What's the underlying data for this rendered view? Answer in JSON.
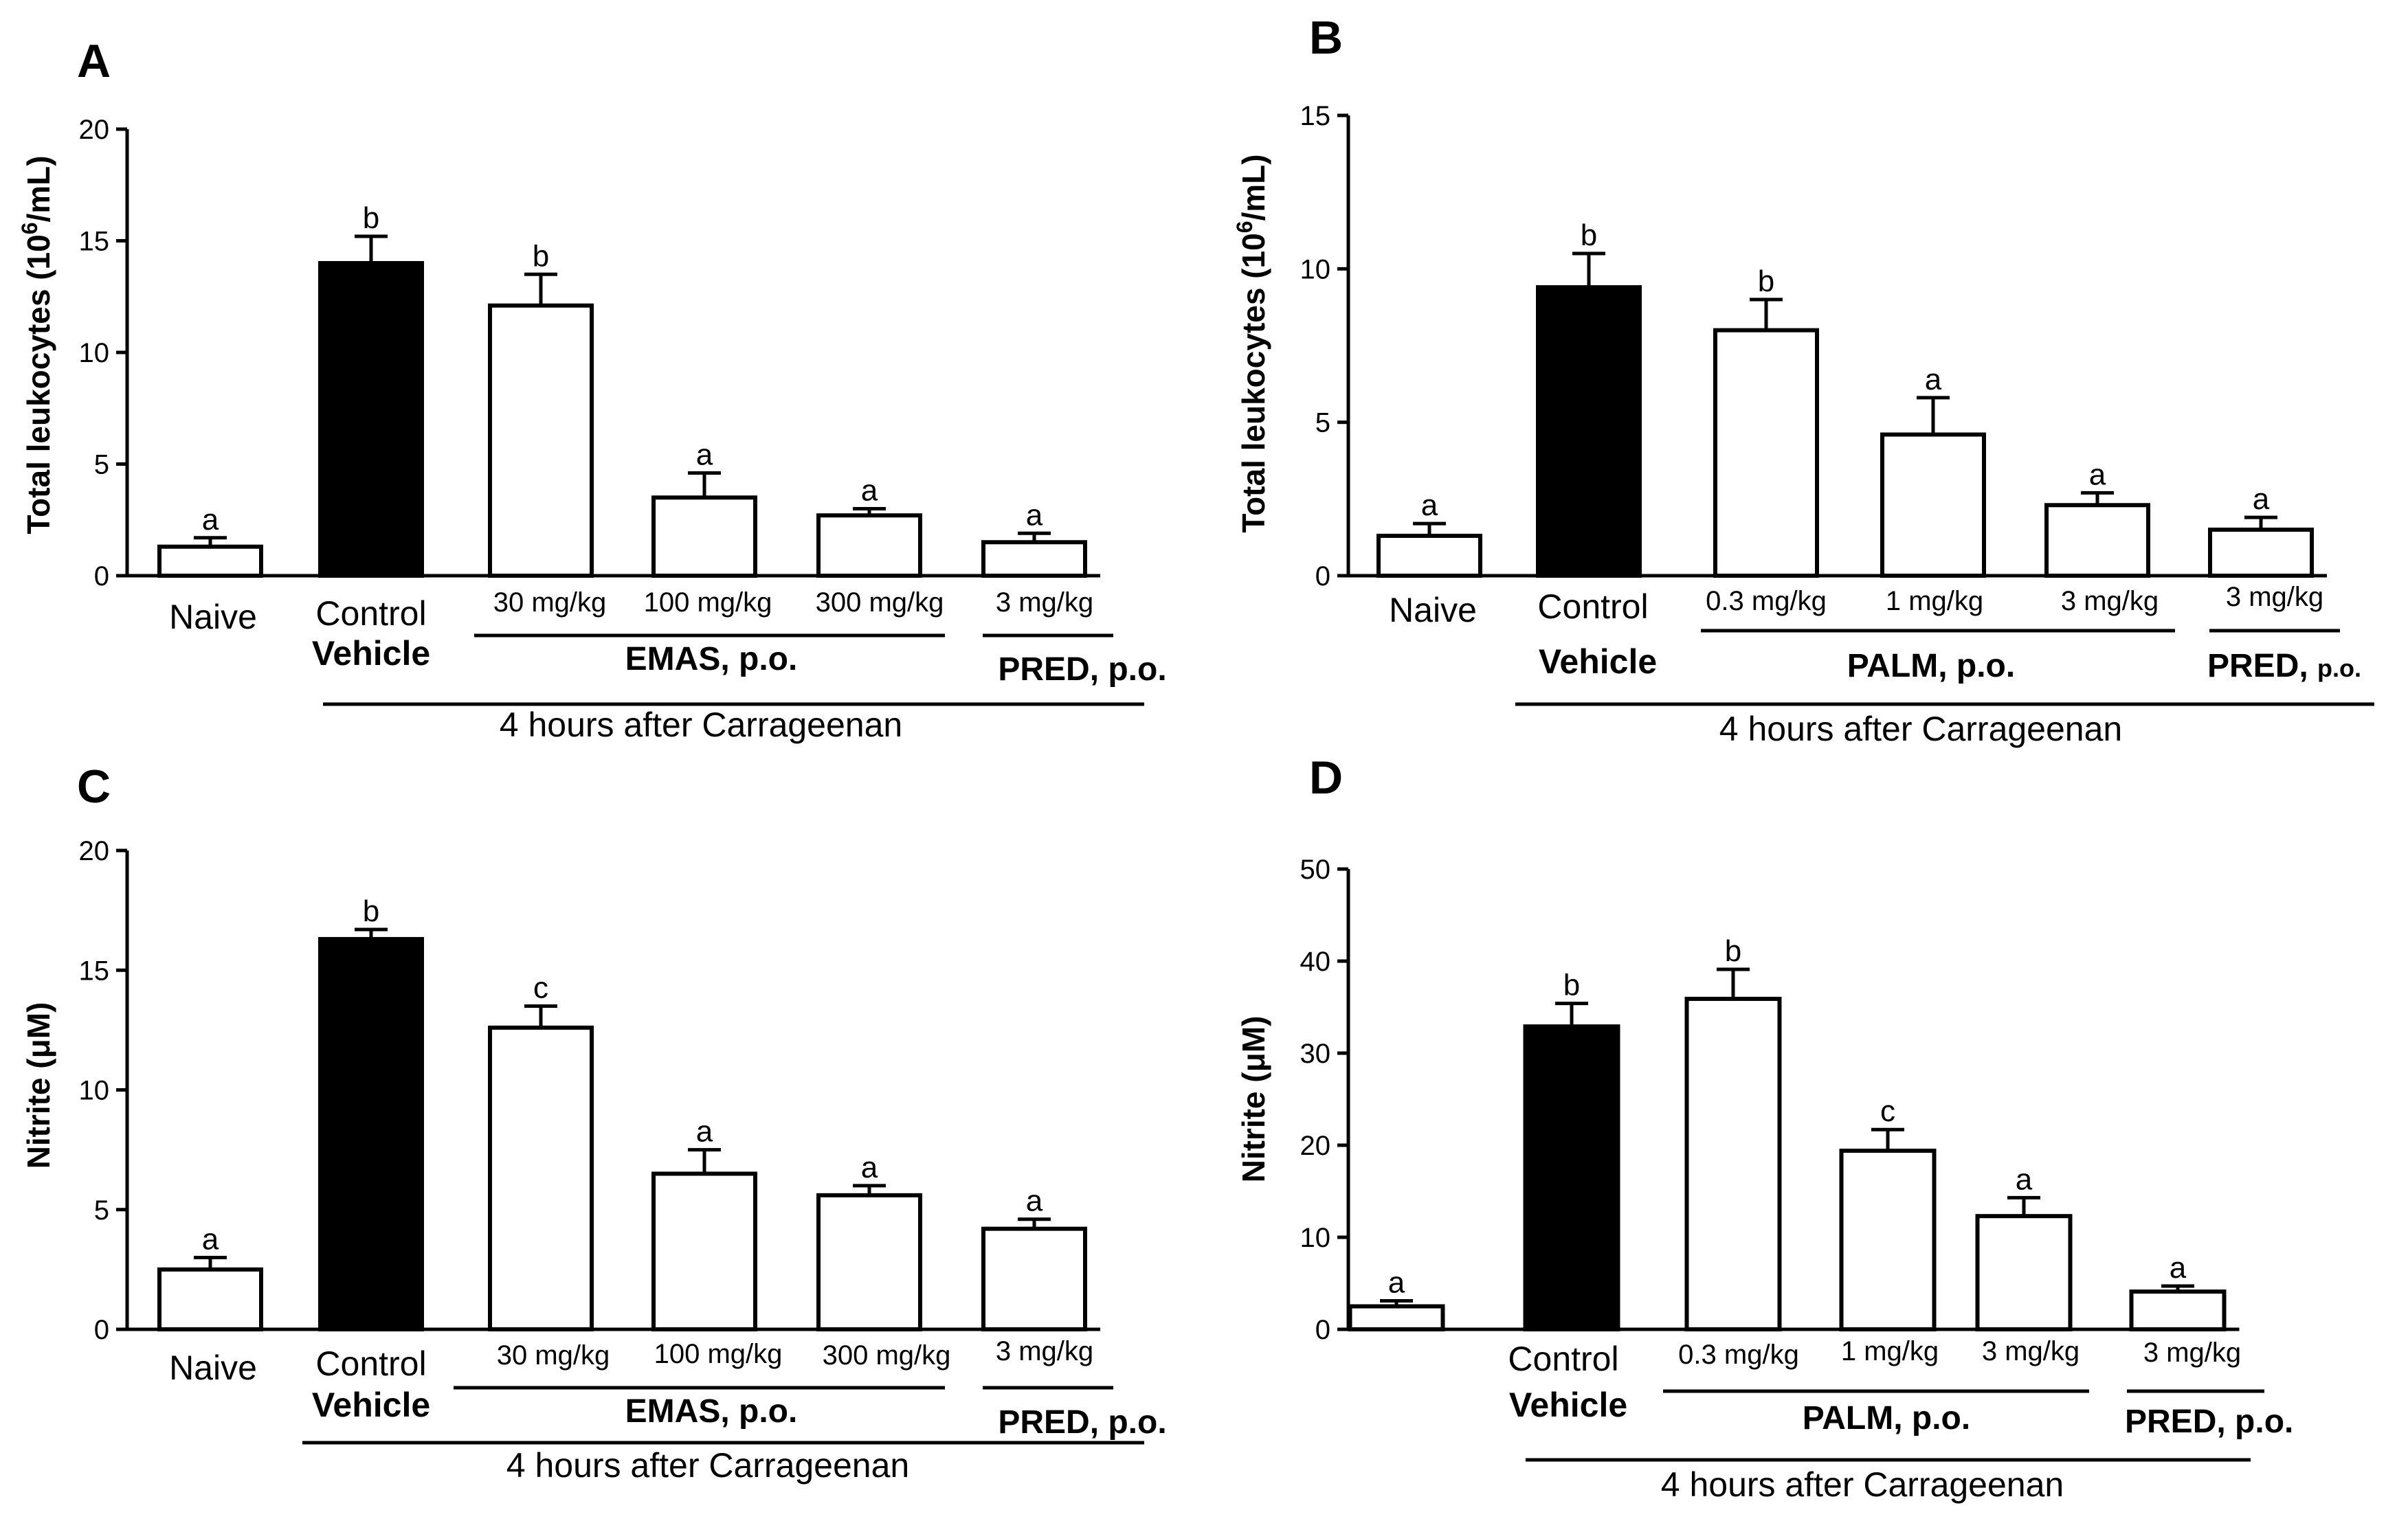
{
  "chart_data": [
    {
      "panel": "A",
      "type": "bar",
      "ylabel": "Total leukocytes (10^6/mL)",
      "ylabel_main": "Total leukocytes",
      "ylabel_unit": "(10",
      "ylabel_exp": "6",
      "ylabel_tail": "/mL)",
      "ylim": [
        0,
        20
      ],
      "yticks": [
        0,
        5,
        10,
        15,
        20
      ],
      "categories": [
        "Naive",
        "Control",
        "30 mg/kg",
        "100 mg/kg",
        "300 mg/kg",
        "3 mg/kg"
      ],
      "values": [
        1.3,
        14.0,
        12.1,
        3.5,
        2.7,
        1.5
      ],
      "errors": [
        0.4,
        1.2,
        1.4,
        1.1,
        0.3,
        0.4
      ],
      "fills": [
        "white",
        "black",
        "white",
        "white",
        "white",
        "white"
      ],
      "significance": [
        "a",
        "b",
        "b",
        "a",
        "a",
        "a"
      ],
      "vehicle_label": "Vehicle",
      "drug_label": "EMAS, p.o.",
      "pred_label": "PRED, p.o.",
      "time_label": "4 hours after Carrageenan"
    },
    {
      "panel": "B",
      "type": "bar",
      "ylabel": "Total leukocytes (10^6/mL)",
      "ylabel_main": "Total leukocytes",
      "ylabel_unit": "(10",
      "ylabel_exp": "6",
      "ylabel_tail": "/mL)",
      "ylim": [
        0,
        15
      ],
      "yticks": [
        0,
        5,
        10,
        15
      ],
      "categories": [
        "Naive",
        "Control",
        "0.3 mg/kg",
        "1 mg/kg",
        "3 mg/kg",
        "3 mg/kg"
      ],
      "values": [
        1.3,
        9.4,
        8.0,
        4.6,
        2.3,
        1.5
      ],
      "errors": [
        0.4,
        1.1,
        1.0,
        1.2,
        0.4,
        0.4
      ],
      "fills": [
        "white",
        "black",
        "white",
        "white",
        "white",
        "white"
      ],
      "significance": [
        "a",
        "b",
        "b",
        "a",
        "a",
        "a"
      ],
      "vehicle_label": "Vehicle",
      "drug_label": "PALM, p.o.",
      "pred_label": "PRED,",
      "pred_route": "p.o.",
      "time_label": "4 hours after Carrageenan"
    },
    {
      "panel": "C",
      "type": "bar",
      "ylabel": "Nitrite (μM)",
      "ylim": [
        0,
        20
      ],
      "yticks": [
        0,
        5,
        10,
        15,
        20
      ],
      "categories": [
        "Naive",
        "Control",
        "30 mg/kg",
        "100 mg/kg",
        "300 mg/kg",
        "3 mg/kg"
      ],
      "values": [
        2.5,
        16.3,
        12.6,
        6.5,
        5.6,
        4.2
      ],
      "errors": [
        0.5,
        0.4,
        0.9,
        1.0,
        0.4,
        0.4
      ],
      "fills": [
        "white",
        "black",
        "white",
        "white",
        "white",
        "white"
      ],
      "significance": [
        "a",
        "b",
        "c",
        "a",
        "a",
        "a"
      ],
      "vehicle_label": "Vehicle",
      "drug_label": "EMAS, p.o.",
      "pred_label": "PRED, p.o.",
      "time_label": "4 hours after Carrageenan"
    },
    {
      "panel": "D",
      "type": "bar",
      "ylabel": "Nitrite (μM)",
      "ylim": [
        0,
        50
      ],
      "yticks": [
        0,
        10,
        20,
        30,
        40,
        50
      ],
      "categories": [
        "",
        "Control",
        "0.3 mg/kg",
        "1 mg/kg",
        "3 mg/kg",
        "3 mg/kg"
      ],
      "values": [
        2.5,
        32.9,
        35.9,
        19.4,
        12.3,
        4.1
      ],
      "errors": [
        0.6,
        2.5,
        3.2,
        2.3,
        2.0,
        0.6
      ],
      "fills": [
        "white",
        "black",
        "white",
        "white",
        "white",
        "white"
      ],
      "significance": [
        "a",
        "b",
        "b",
        "c",
        "a",
        "a"
      ],
      "vehicle_label": "Vehicle",
      "drug_label": "PALM, p.o.",
      "pred_label": "PRED, p.o.",
      "time_label": "4 hours after Carrageenan"
    }
  ]
}
